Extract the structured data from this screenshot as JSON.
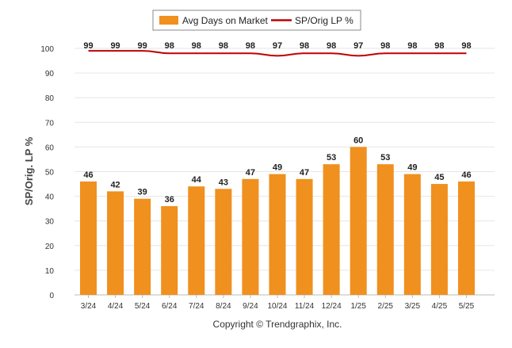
{
  "chart_data": {
    "type": "bar",
    "categories": [
      "3/24",
      "4/24",
      "5/24",
      "6/24",
      "7/24",
      "8/24",
      "9/24",
      "10/24",
      "11/24",
      "12/24",
      "1/25",
      "2/25",
      "3/25",
      "4/25",
      "5/25"
    ],
    "series": [
      {
        "name": "Avg Days on Market",
        "type": "bar",
        "values": [
          46,
          42,
          39,
          36,
          44,
          43,
          47,
          49,
          47,
          53,
          60,
          53,
          49,
          45,
          46
        ]
      },
      {
        "name": "SP/Orig LP %",
        "type": "line",
        "values": [
          99,
          99,
          99,
          98,
          98,
          98,
          98,
          97,
          98,
          98,
          97,
          98,
          98,
          98,
          98
        ]
      }
    ],
    "ylabel": "SP/Orig. LP %",
    "yticks": [
      0,
      10,
      20,
      30,
      40,
      50,
      60,
      70,
      80,
      90,
      100
    ],
    "ylim": [
      0,
      100
    ],
    "grid": true,
    "legend_position": "top-center",
    "colors": {
      "bar": "#F0901E",
      "line": "#C00000"
    }
  },
  "footer": {
    "copyright": "Copyright © Trendgraphix, Inc."
  }
}
